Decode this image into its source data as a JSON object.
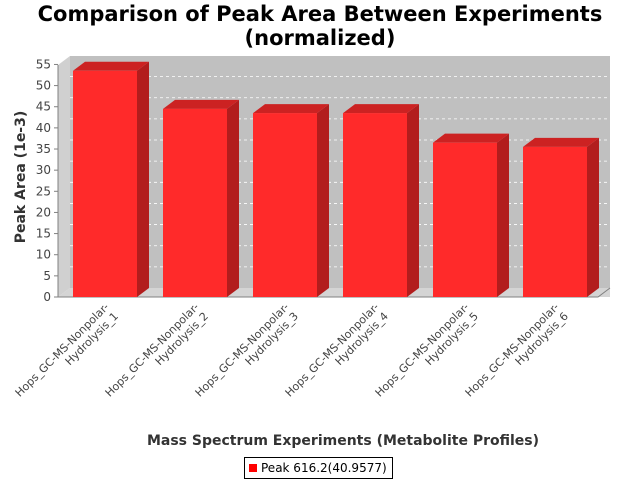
{
  "title_line1": "Comparison of Peak Area Between Experiments",
  "title_line2": "(normalized)",
  "chart_data": {
    "type": "bar",
    "categories": [
      "Hops_GC-MS-Nonpolar-Hydrolysis_1",
      "Hops_GC-MS-Nonpolar-Hydrolysis_2",
      "Hops_GC-MS-Nonpolar-Hydrolysis_3",
      "Hops_GC-MS-Nonpolar-Hydrolysis_4",
      "Hops_GC-MS-Nonpolar-Hydrolysis_5",
      "Hops_GC-MS-Nonpolar-Hydrolysis_6"
    ],
    "category_lines": [
      [
        "Hops_GC-MS-Nonpolar-",
        "Hydrolysis_1"
      ],
      [
        "Hops_GC-MS-Nonpolar-",
        "Hydrolysis_2"
      ],
      [
        "Hops_GC-MS-Nonpolar-",
        "Hydrolysis_3"
      ],
      [
        "Hops_GC-MS-Nonpolar-",
        "Hydrolysis_4"
      ],
      [
        "Hops_GC-MS-Nonpolar-",
        "Hydrolysis_5"
      ],
      [
        "Hops_GC-MS-Nonpolar-",
        "Hydrolysis_6"
      ]
    ],
    "series": [
      {
        "name": "Peak 616.2(40.9577)",
        "values": [
          53.5,
          44.5,
          43.5,
          43.5,
          36.5,
          35.5
        ]
      }
    ],
    "xlabel": "Mass Spectrum Experiments (Metabolite Profiles)",
    "ylabel": "Peak Area (1e-3)",
    "ylim": [
      0,
      57
    ],
    "yticks": [
      0,
      5,
      10,
      15,
      20,
      25,
      30,
      35,
      40,
      45,
      50,
      55
    ],
    "grid": true,
    "legend_position": "bottom",
    "colors": {
      "bar_front": "#ff2a2a",
      "bar_side": "#b21d1d",
      "bar_top": "#cc2222",
      "plot_back": "#c0c0c0",
      "plot_floor": "#d4d4d4",
      "legend_swatch": "#ff0000"
    }
  }
}
